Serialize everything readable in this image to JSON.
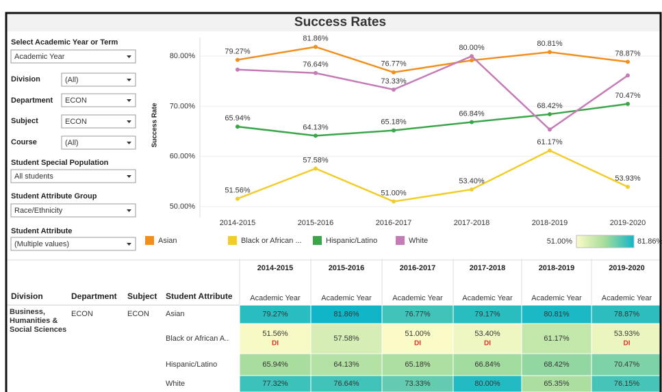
{
  "header": {
    "title": "Success Rates"
  },
  "filters": [
    {
      "label": "Select Academic Year or Term",
      "value": "Academic Year"
    },
    {
      "label": "Division",
      "value": "(All)"
    },
    {
      "label": "Department",
      "value": "ECON"
    },
    {
      "label": "Subject",
      "value": "ECON"
    },
    {
      "label": "Course",
      "value": "(All)"
    },
    {
      "label": "Student Special Population",
      "value": "All students"
    },
    {
      "label": "Student Attribute Group",
      "value": "Race/Ethnicity"
    },
    {
      "label": "Student Attribute",
      "value": "(Multiple values)"
    }
  ],
  "chart_data": {
    "type": "line",
    "y_label": "Success Rate",
    "categories": [
      "2014-2015",
      "2015-2016",
      "2016-2017",
      "2017-2018",
      "2018-2019",
      "2019-2020"
    ],
    "series": [
      {
        "name": "Asian",
        "color": "#f28e1c",
        "values": [
          79.27,
          81.86,
          76.77,
          79.17,
          80.81,
          78.87
        ],
        "value_labels": [
          "79.27%",
          "81.86%",
          "76.77%",
          null,
          "80.81%",
          "78.87%"
        ]
      },
      {
        "name": "Black or African ...",
        "color": "#f2cd2a",
        "values": [
          51.56,
          57.58,
          51.0,
          53.4,
          61.17,
          53.93
        ],
        "value_labels": [
          "51.56%",
          "57.58%",
          "51.00%",
          "53.40%",
          "61.17%",
          "53.93%"
        ]
      },
      {
        "name": "Hispanic/Latino",
        "color": "#3ba54a",
        "values": [
          65.94,
          64.13,
          65.18,
          66.84,
          68.42,
          70.47
        ],
        "value_labels": [
          "65.94%",
          "64.13%",
          "65.18%",
          "66.84%",
          "68.42%",
          "70.47%"
        ]
      },
      {
        "name": "White",
        "color": "#c47bb6",
        "values": [
          77.32,
          76.64,
          73.33,
          80.0,
          65.35,
          76.15
        ],
        "value_labels": [
          null,
          "76.64%",
          "73.33%",
          "80.00%",
          null,
          null
        ]
      }
    ],
    "ylim": [
      47.8,
      83.7
    ],
    "yticks": [
      {
        "value": 50,
        "label": "50.00%"
      },
      {
        "value": 60,
        "label": "60.00%"
      },
      {
        "value": 70,
        "label": "70.00%"
      },
      {
        "value": 80,
        "label": "80.00%"
      }
    ],
    "grid": true
  },
  "color_legend": {
    "min": {
      "value": 51.0,
      "label": "51.00%"
    },
    "max": {
      "value": 81.86,
      "label": "81.86%"
    },
    "colors": [
      "#fbfbc8",
      "#a5dc9c",
      "#10b6c8"
    ]
  },
  "table": {
    "headers": [
      "Division",
      "Department",
      "Subject",
      "Student Attribute"
    ],
    "columns": [
      "2014-2015",
      "2015-2016",
      "2016-2017",
      "2017-2018",
      "2018-2019",
      "2019-2020"
    ],
    "subheaders": [
      "Academic Year",
      "Academic Year",
      "Academic Year",
      "Academic Year",
      "Academic Year",
      "Academic Year"
    ],
    "division": "Business, Humanities & Social Sciences",
    "department": "ECON",
    "subject": "ECON",
    "rows": [
      {
        "attribute": "Asian",
        "cells": [
          {
            "value": 79.27,
            "label": "79.27%"
          },
          {
            "value": 81.86,
            "label": "81.86%"
          },
          {
            "value": 76.77,
            "label": "76.77%"
          },
          {
            "value": 79.17,
            "label": "79.17%"
          },
          {
            "value": 80.81,
            "label": "80.81%"
          },
          {
            "value": 78.87,
            "label": "78.87%"
          }
        ]
      },
      {
        "attribute": "Black or African A..",
        "cells": [
          {
            "value": 51.56,
            "label": "51.56%",
            "flag": "DI"
          },
          {
            "value": 57.58,
            "label": "57.58%"
          },
          {
            "value": 51.0,
            "label": "51.00%",
            "flag": "DI"
          },
          {
            "value": 53.4,
            "label": "53.40%",
            "flag": "DI"
          },
          {
            "value": 61.17,
            "label": "61.17%"
          },
          {
            "value": 53.93,
            "label": "53.93%",
            "flag": "DI"
          }
        ]
      },
      {
        "attribute": "Hispanic/Latino",
        "cells": [
          {
            "value": 65.94,
            "label": "65.94%"
          },
          {
            "value": 64.13,
            "label": "64.13%"
          },
          {
            "value": 65.18,
            "label": "65.18%"
          },
          {
            "value": 66.84,
            "label": "66.84%"
          },
          {
            "value": 68.42,
            "label": "68.42%"
          },
          {
            "value": 70.47,
            "label": "70.47%"
          }
        ]
      },
      {
        "attribute": "White",
        "cells": [
          {
            "value": 77.32,
            "label": "77.32%"
          },
          {
            "value": 76.64,
            "label": "76.64%"
          },
          {
            "value": 73.33,
            "label": "73.33%"
          },
          {
            "value": 80.0,
            "label": "80.00%"
          },
          {
            "value": 65.35,
            "label": "65.35%"
          },
          {
            "value": 76.15,
            "label": "76.15%"
          }
        ]
      }
    ]
  }
}
